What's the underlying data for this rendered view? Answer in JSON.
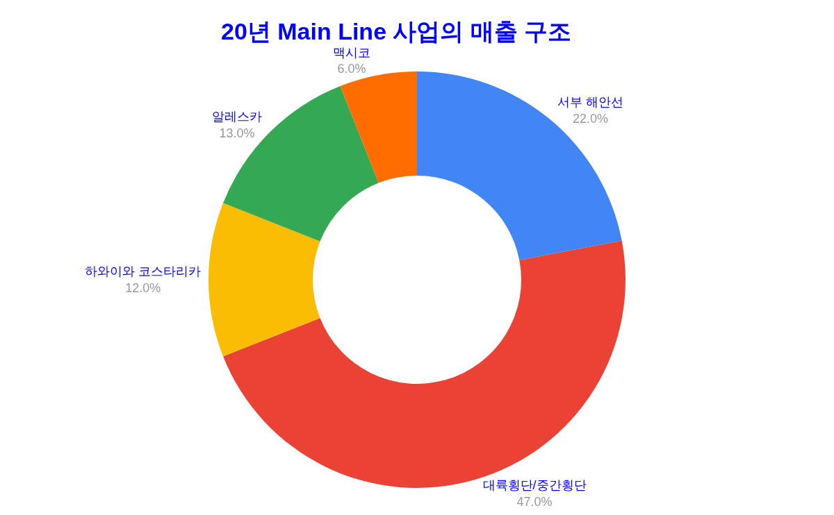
{
  "chart_data": {
    "type": "donut",
    "title": "20년 Main Line 사업의 매출 구조",
    "categories": [
      "서부 해안선",
      "대륙횡단/중간횡단",
      "하와이와 코스타리카",
      "알레스카",
      "맥시코"
    ],
    "values": [
      22,
      47,
      12,
      13,
      6
    ],
    "value_labels": [
      "22.0%",
      "47.0%",
      "12.0%",
      "13.0%",
      "6.0%"
    ],
    "colors": [
      "#4285f4",
      "#ea4335",
      "#fbbc04",
      "#34a853",
      "#ff6d01"
    ],
    "legend": false
  }
}
